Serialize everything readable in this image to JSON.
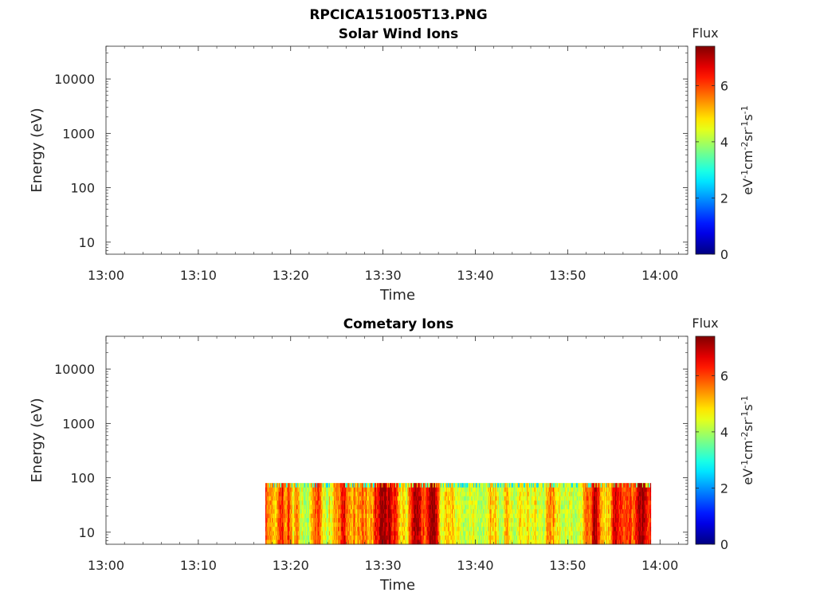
{
  "figure": {
    "title": "RPCICA151005T13.PNG"
  },
  "chart_data": [
    {
      "type": "heatmap",
      "title": "Solar Wind Ions",
      "xlabel": "Time",
      "ylabel": "Energy (eV)",
      "xticks": [
        "13:00",
        "13:10",
        "13:20",
        "13:30",
        "13:40",
        "13:50",
        "14:00"
      ],
      "xlim": [
        "13:00",
        "14:03"
      ],
      "yscale": "log",
      "yticks": [
        10,
        100,
        1000,
        10000
      ],
      "ylim": [
        6,
        40000
      ],
      "colorbar": {
        "label": "Flux",
        "unit": "eV-1cm-2sr-1s-1",
        "ticks": [
          0,
          2,
          4,
          6
        ],
        "range": [
          0,
          7.4
        ],
        "colormap": "jet"
      },
      "data_regions": []
    },
    {
      "type": "heatmap",
      "title": "Cometary Ions",
      "xlabel": "Time",
      "ylabel": "Energy (eV)",
      "xticks": [
        "13:00",
        "13:10",
        "13:20",
        "13:30",
        "13:40",
        "13:50",
        "14:00"
      ],
      "xlim": [
        "13:00",
        "14:03"
      ],
      "yscale": "log",
      "yticks": [
        10,
        100,
        1000,
        10000
      ],
      "ylim": [
        6,
        40000
      ],
      "colorbar": {
        "label": "Flux",
        "unit": "eV-1cm-2sr-1s-1",
        "ticks": [
          0,
          2,
          4,
          6
        ],
        "range": [
          0,
          7.4
        ],
        "colormap": "jet"
      },
      "data_regions": [
        {
          "time_start": "13:17:15",
          "time_end": "13:59:00",
          "energy_min": 6,
          "energy_max": 80,
          "flux_typical": 6.0,
          "flux_range": [
            2.5,
            7.3
          ]
        }
      ]
    }
  ]
}
